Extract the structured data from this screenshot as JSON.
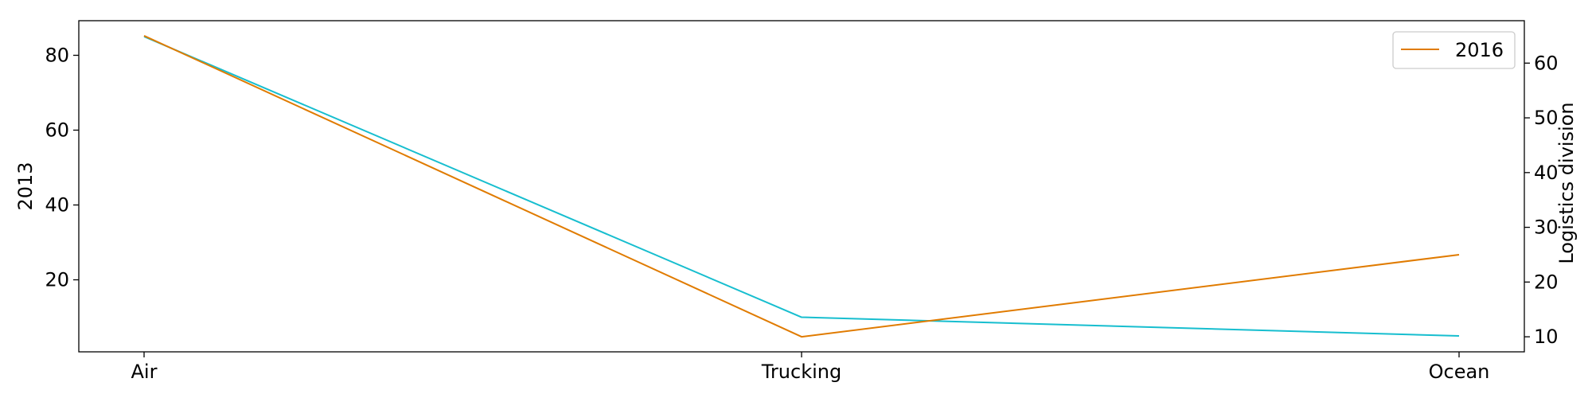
{
  "chart_data": {
    "type": "line",
    "categories": [
      "Air",
      "Trucking",
      "Ocean"
    ],
    "series": [
      {
        "values": [
          85,
          10,
          5
        ],
        "color": "#17becf",
        "axis": "left"
      },
      {
        "name": "2016",
        "values": [
          65,
          10,
          25
        ],
        "color": "#e07b00",
        "axis": "right"
      }
    ],
    "left_axis": {
      "label": "2013",
      "ticks": [
        20,
        40,
        60,
        80
      ],
      "ylim": [
        0.75,
        89.25
      ]
    },
    "right_axis": {
      "label": "Logistics division",
      "ticks": [
        10,
        20,
        30,
        40,
        50,
        60
      ],
      "ylim": [
        7.25,
        67.75
      ]
    },
    "legend": {
      "placement": "top-right",
      "entries": [
        "2016"
      ]
    },
    "grid": false
  }
}
